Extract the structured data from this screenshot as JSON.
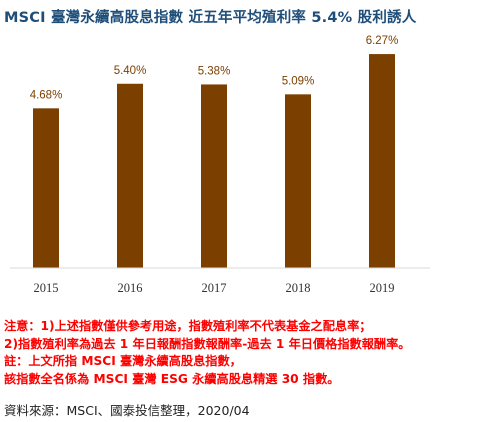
{
  "chart_data": {
    "type": "bar",
    "title": "MSCI 臺灣永續高股息指數  近五年平均殖利率 5.4%  股利誘人",
    "categories": [
      "2015",
      "2016",
      "2017",
      "2018",
      "2019"
    ],
    "values": [
      4.68,
      5.4,
      5.38,
      5.09,
      6.27
    ],
    "value_labels": [
      "4.68%",
      "5.40%",
      "5.38%",
      "5.09%",
      "6.27%"
    ],
    "xlabel": "",
    "ylabel": "",
    "ylim": [
      0,
      6.8
    ],
    "grid": false,
    "legend": "none",
    "bar_color": "#7b3f00",
    "title_color": "#1f4e79"
  },
  "notes": [
    "注意：1)上述指數僅供參考用途，指數殖利率不代表基金之配息率；",
    "2)指數殖利率為過去 1 年日報酬指數報酬率-過去 1 年日價格指數報酬率。",
    "註：上文所指 MSCI 臺灣永續高股息指數，",
    "該指數全名係為 MSCI 臺灣 ESG 永續高股息精選 30 指數。"
  ],
  "notes_color": "#ff0000",
  "source": "資料來源：MSCI、國泰投信整理，2020/04"
}
